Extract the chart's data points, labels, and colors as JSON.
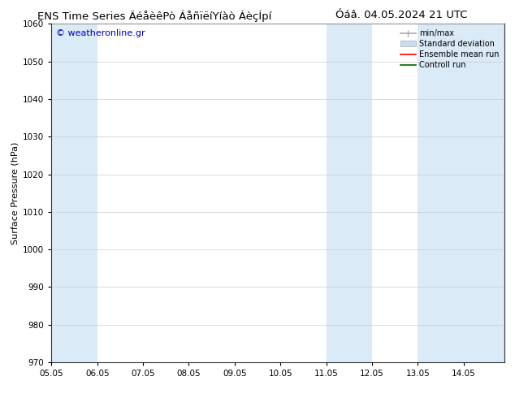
{
  "title_left": "ENS Time Series ÄéåèêPò ÁåñïëíYíàò ÁèçÍpí",
  "title_right": "Óáâ. 04.05.2024 21 UTC",
  "ylabel": "Surface Pressure (hPa)",
  "xlim_min": 5.05,
  "xlim_max": 14.95,
  "ylim_min": 970,
  "ylim_max": 1060,
  "yticks": [
    970,
    980,
    990,
    1000,
    1010,
    1020,
    1030,
    1040,
    1050,
    1060
  ],
  "xtick_labels": [
    "05.05",
    "06.05",
    "07.05",
    "08.05",
    "09.05",
    "10.05",
    "11.05",
    "12.05",
    "13.05",
    "14.05"
  ],
  "xtick_positions": [
    5.05,
    6.05,
    7.05,
    8.05,
    9.05,
    10.05,
    11.05,
    12.05,
    13.05,
    14.05
  ],
  "shaded_bands": [
    {
      "xmin": 5.05,
      "xmax": 6.05
    },
    {
      "xmin": 11.05,
      "xmax": 12.05
    },
    {
      "xmin": 13.05,
      "xmax": 14.95
    }
  ],
  "shade_color": "#daeaf7",
  "watermark_text": "© weatheronline.gr",
  "watermark_color": "#0000bb",
  "legend_items": [
    {
      "label": "min/max",
      "color": "#aaaaaa",
      "lw": 1.2
    },
    {
      "label": "Standard deviation",
      "color": "#c8ddf0",
      "lw": 6
    },
    {
      "label": "Ensemble mean run",
      "color": "#ff0000",
      "lw": 1.2
    },
    {
      "label": "Controll run",
      "color": "#006600",
      "lw": 1.2
    }
  ],
  "background_color": "#ffffff",
  "grid_color": "#cccccc",
  "title_fontsize": 9.5,
  "axis_label_fontsize": 8,
  "tick_fontsize": 7.5,
  "legend_fontsize": 7,
  "watermark_fontsize": 8
}
